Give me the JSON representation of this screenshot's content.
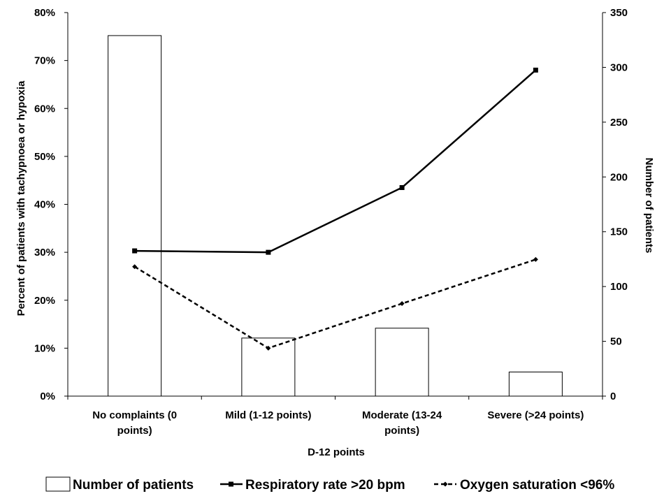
{
  "chart_data": {
    "type": "bar",
    "title": "",
    "xlabel": "D-12 points",
    "ylabel_left": "Percent of patients with tachypnoea or hypoxia",
    "ylabel_right": "Number of patients",
    "categories": [
      [
        "No complaints (0",
        "points)"
      ],
      [
        "Mild (1-12 points)"
      ],
      [
        "Moderate (13-24",
        "points)"
      ],
      [
        "Severe (>24 points)"
      ]
    ],
    "left_axis": {
      "min": 0,
      "max": 80,
      "step": 10,
      "suffix": "%"
    },
    "right_axis": {
      "min": 0,
      "max": 350,
      "step": 50
    },
    "series": [
      {
        "name": "Number of patients",
        "type": "bar",
        "axis": "right",
        "values": [
          329,
          53,
          62,
          22
        ]
      },
      {
        "name": "Respiratory rate >20 bpm",
        "type": "line",
        "axis": "left",
        "style": "solid",
        "marker": "square",
        "values": [
          30.3,
          30.0,
          43.5,
          68.0
        ]
      },
      {
        "name": "Oxygen saturation <96%",
        "type": "line",
        "axis": "left",
        "style": "dashed",
        "marker": "diamond",
        "values": [
          27.0,
          10.0,
          19.3,
          28.5
        ]
      }
    ],
    "grid": false,
    "legend_position": "bottom",
    "colors": {
      "bar_fill": "#ffffff",
      "stroke": "#000000"
    }
  }
}
